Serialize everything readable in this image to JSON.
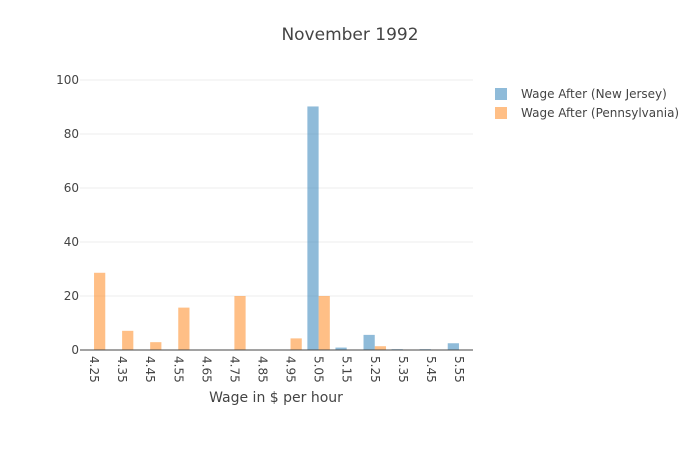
{
  "chart_data": {
    "type": "bar",
    "title": "November 1992",
    "xlabel": "Wage in $ per hour",
    "ylabel": "",
    "ylim": [
      0,
      100
    ],
    "yticks": [
      "0",
      "20",
      "40",
      "60",
      "80",
      "100"
    ],
    "grid": true,
    "legend_position": "top-right",
    "categories": [
      "4.25",
      "4.35",
      "4.45",
      "4.55",
      "4.65",
      "4.75",
      "4.85",
      "4.95",
      "5.05",
      "5.15",
      "5.25",
      "5.35",
      "5.45",
      "5.55"
    ],
    "series": [
      {
        "name": "Wage After (New Jersey)",
        "color": "#1f77b4",
        "values": [
          0,
          0,
          0,
          0,
          0,
          0,
          0,
          0,
          90.2,
          0.9,
          5.6,
          0.3,
          0.3,
          2.5
        ]
      },
      {
        "name": "Wage After (Pennsylvania)",
        "color": "#ff7f0e",
        "values": [
          28.6,
          7.1,
          2.9,
          15.7,
          0,
          20.0,
          0,
          4.3,
          20.0,
          0,
          1.4,
          0,
          0,
          0
        ]
      }
    ]
  }
}
